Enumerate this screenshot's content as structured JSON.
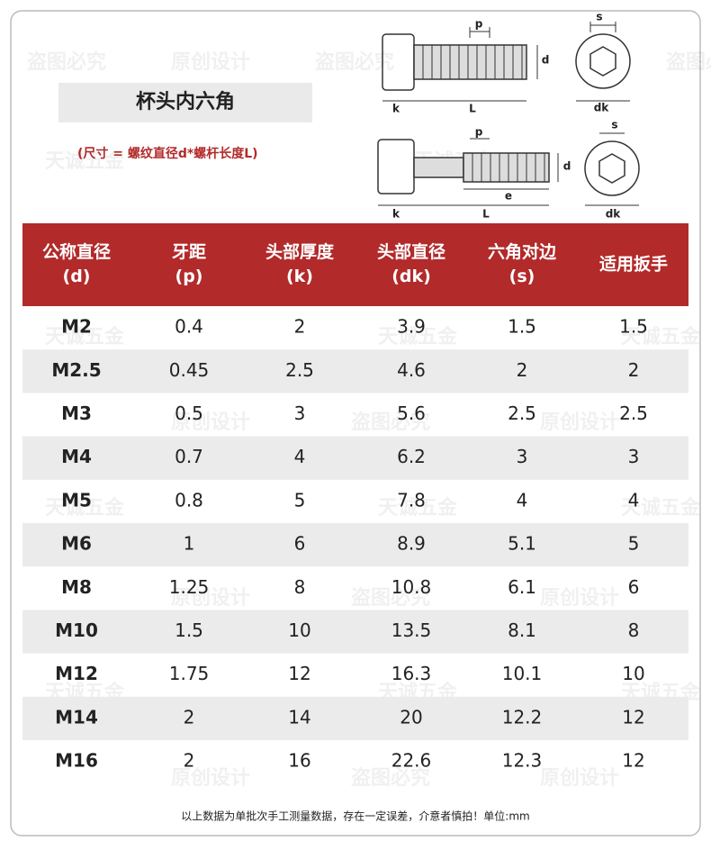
{
  "title": "杯头内六角",
  "subtitle": "(尺寸 = 螺纹直径d*螺杆长度L)",
  "diagrams": [
    {
      "labels": [
        "p",
        "d",
        "k",
        "L",
        "s",
        "dk"
      ]
    },
    {
      "labels": [
        "p",
        "d",
        "e",
        "k",
        "L",
        "s",
        "dk"
      ]
    }
  ],
  "table": {
    "headers": [
      [
        "公称直径",
        "(d)"
      ],
      [
        "牙距",
        "(p)"
      ],
      [
        "头部厚度",
        "(k)"
      ],
      [
        "头部直径",
        "(dk)"
      ],
      [
        "六角对边",
        "(s)"
      ],
      [
        "适用扳手"
      ]
    ],
    "rows": [
      [
        "M2",
        "0.4",
        "2",
        "3.9",
        "1.5",
        "1.5"
      ],
      [
        "M2.5",
        "0.45",
        "2.5",
        "4.6",
        "2",
        "2"
      ],
      [
        "M3",
        "0.5",
        "3",
        "5.6",
        "2.5",
        "2.5"
      ],
      [
        "M4",
        "0.7",
        "4",
        "6.2",
        "3",
        "3"
      ],
      [
        "M5",
        "0.8",
        "5",
        "7.8",
        "4",
        "4"
      ],
      [
        "M6",
        "1",
        "6",
        "8.9",
        "5.1",
        "5"
      ],
      [
        "M8",
        "1.25",
        "8",
        "10.8",
        "6.1",
        "6"
      ],
      [
        "M10",
        "1.5",
        "10",
        "13.5",
        "8.1",
        "8"
      ],
      [
        "M12",
        "1.75",
        "12",
        "16.3",
        "10.1",
        "10"
      ],
      [
        "M14",
        "2",
        "14",
        "20",
        "12.2",
        "12"
      ],
      [
        "M16",
        "2",
        "16",
        "22.6",
        "12.3",
        "12"
      ]
    ]
  },
  "footer": "以上数据为单批次手工测量数据，存在一定误差，介意者慎拍！单位:mm",
  "watermarks": [
    "原创设计",
    "盗图必究",
    "天诚五金"
  ]
}
